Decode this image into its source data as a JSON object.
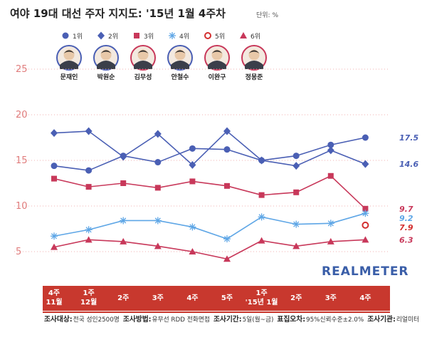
{
  "header": {
    "title": "여야 19대 대선 주자 지지도: '15년 1월 4주차",
    "unit": "단위: %"
  },
  "brand": "REALMETER",
  "legend": [
    {
      "rank": "1위",
      "marker": "circle-filled",
      "color": "#4a5fb4"
    },
    {
      "rank": "2위",
      "marker": "diamond",
      "color": "#4a5fb4"
    },
    {
      "rank": "3위",
      "marker": "square",
      "color": "#c8385a"
    },
    {
      "rank": "4위",
      "marker": "asterisk",
      "color": "#5ea6e6"
    },
    {
      "rank": "5위",
      "marker": "circle-open",
      "color": "#d32f2f"
    },
    {
      "rank": "6위",
      "marker": "triangle",
      "color": "#c8385a"
    }
  ],
  "candidates": [
    "문재인",
    "박원순",
    "김무성",
    "안철수",
    "이완구",
    "정몽준"
  ],
  "chart_data": {
    "type": "line",
    "categories": [
      "4주 11월",
      "1주 12월",
      "2주",
      "3주",
      "4주",
      "5주",
      "1주 '15년 1월",
      "2주",
      "3주",
      "4주"
    ],
    "ylim": [
      0,
      25
    ],
    "yticks": [
      "5",
      "10",
      "15",
      "20",
      "25"
    ],
    "series": [
      {
        "name": "문재인",
        "color": "#4a5fb4",
        "marker": "circle-filled",
        "values": [
          14.4,
          13.9,
          15.5,
          14.8,
          16.3,
          16.2,
          15.0,
          15.5,
          16.7,
          17.5
        ],
        "end_label": "17.5"
      },
      {
        "name": "박원순",
        "color": "#4a5fb4",
        "marker": "diamond",
        "values": [
          18.0,
          18.2,
          15.4,
          17.9,
          14.5,
          18.2,
          15.0,
          14.4,
          16.1,
          14.6
        ],
        "end_label": "14.6"
      },
      {
        "name": "김무성",
        "color": "#c8385a",
        "marker": "square",
        "values": [
          13.0,
          12.1,
          12.5,
          12.0,
          12.7,
          12.2,
          11.2,
          11.5,
          13.3,
          9.7
        ],
        "end_label": "9.7"
      },
      {
        "name": "안철수",
        "color": "#5ea6e6",
        "marker": "asterisk",
        "values": [
          6.7,
          7.4,
          8.4,
          8.4,
          7.7,
          6.4,
          8.8,
          8.0,
          8.1,
          9.2
        ],
        "end_label": "9.2"
      },
      {
        "name": "이완구",
        "color": "#d32f2f",
        "marker": "circle-open",
        "values": [
          null,
          null,
          null,
          null,
          null,
          null,
          null,
          null,
          null,
          7.9
        ],
        "end_label": "7.9"
      },
      {
        "name": "정몽준",
        "color": "#c8385a",
        "marker": "triangle",
        "values": [
          5.5,
          6.3,
          6.1,
          5.6,
          5.0,
          4.2,
          6.2,
          5.6,
          6.1,
          6.3
        ],
        "end_label": "6.3"
      }
    ]
  },
  "footer": {
    "parts": [
      {
        "bold": "조사대상:",
        "text": "전국 성인2500명"
      },
      {
        "bold": "조사방법:",
        "text": "유무선 RDD 전화면접"
      },
      {
        "bold": "조사기간:",
        "text": "5일(월~금)"
      },
      {
        "bold": "표집오차:",
        "text": "95%신뢰수준±2.0%"
      },
      {
        "bold": "조사기관:",
        "text": "리얼미터"
      }
    ]
  }
}
